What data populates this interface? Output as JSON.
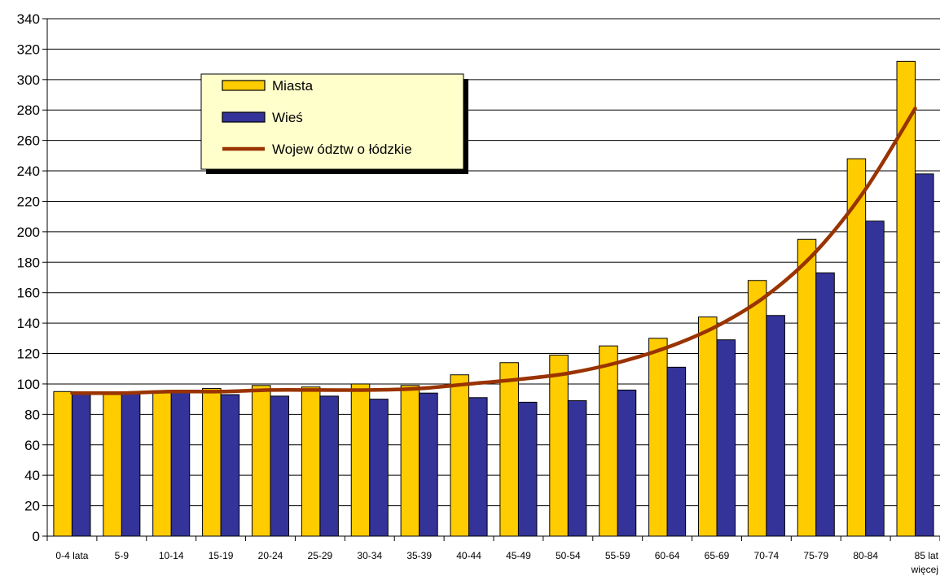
{
  "chart_data": {
    "type": "bar",
    "categories": [
      "0-4 lata",
      "5-9",
      "10-14",
      "15-19",
      "20-24",
      "25-29",
      "30-34",
      "35-39",
      "40-44",
      "45-49",
      "50-54",
      "55-59",
      "60-64",
      "65-69",
      "70-74",
      "75-79",
      "80-84",
      "85 lat więcej"
    ],
    "category_lines": [
      [
        "0-4 lata"
      ],
      [
        "5-9"
      ],
      [
        "10-14"
      ],
      [
        "15-19"
      ],
      [
        "20-24"
      ],
      [
        "25-29"
      ],
      [
        "30-34"
      ],
      [
        "35-39"
      ],
      [
        "40-44"
      ],
      [
        "45-49"
      ],
      [
        "50-54"
      ],
      [
        "55-59"
      ],
      [
        "60-64"
      ],
      [
        "65-69"
      ],
      [
        "70-74"
      ],
      [
        "75-79"
      ],
      [
        "80-84"
      ],
      [
        "85 lat",
        "więcej"
      ]
    ],
    "series": [
      {
        "name": "Miasta",
        "kind": "bar",
        "color": "#FFCC00",
        "values": [
          95,
          93,
          95,
          97,
          99,
          98,
          100,
          99,
          106,
          114,
          119,
          125,
          130,
          144,
          168,
          195,
          248,
          312
        ]
      },
      {
        "name": "Wieś",
        "kind": "bar",
        "color": "#333399",
        "values": [
          94,
          94,
          95,
          93,
          92,
          92,
          90,
          94,
          91,
          88,
          89,
          96,
          111,
          129,
          145,
          173,
          207,
          238
        ]
      },
      {
        "name": "Wojew ództw o łódzkie",
        "kind": "line",
        "color": "#993300",
        "values": [
          94,
          94,
          95,
          95,
          96,
          96,
          96,
          97,
          100,
          103,
          107,
          114,
          124,
          138,
          158,
          187,
          228,
          281
        ]
      }
    ],
    "ylim": [
      0,
      340
    ],
    "yticks": [
      0,
      20,
      40,
      60,
      80,
      100,
      120,
      140,
      160,
      180,
      200,
      220,
      240,
      260,
      280,
      300,
      320,
      340
    ],
    "grid": true,
    "legend_position": "top-left",
    "legend_background": "#FFFFCC",
    "title": "",
    "xlabel": "",
    "ylabel": ""
  }
}
